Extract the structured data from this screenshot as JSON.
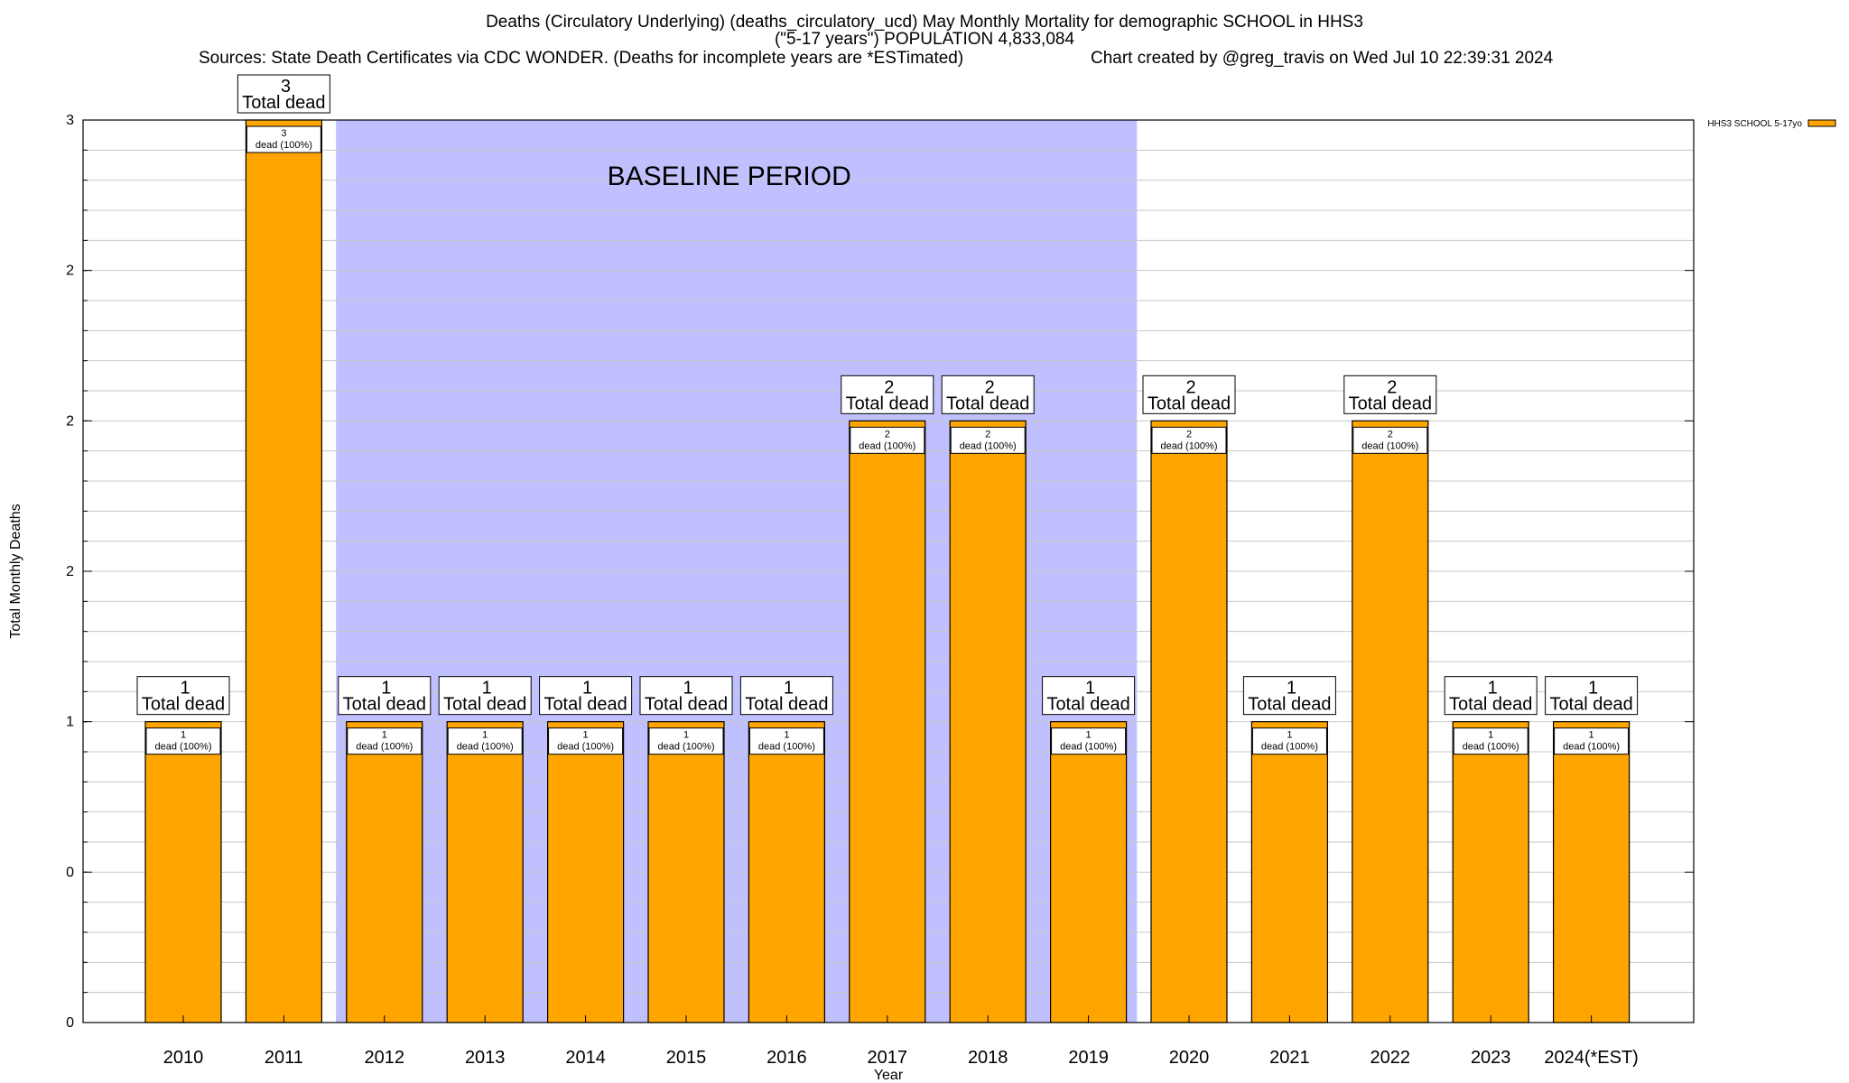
{
  "header": {
    "title_line1": "Deaths (Circulatory Underlying) (deaths_circulatory_ucd) May Monthly Mortality for demographic SCHOOL in HHS3",
    "title_line2": "(\"5-17 years\") POPULATION 4,833,084",
    "sources": "Sources: State Death Certificates via CDC WONDER. (Deaths for incomplete years are *ESTimated)",
    "credit": "Chart created by @greg_travis on Wed Jul 10 22:39:31 2024"
  },
  "chart_data": {
    "type": "bar",
    "xlabel": "Year",
    "ylabel": "Total Monthly Deaths",
    "ylim": [
      0,
      3
    ],
    "y_tick_labels": [
      "0",
      "0",
      "1",
      "2",
      "2",
      "2",
      "3"
    ],
    "y_tick_values": [
      0,
      0.5,
      1,
      1.5,
      2,
      2.5,
      3
    ],
    "grid": true,
    "legend_position": "top-right",
    "categories": [
      "2010",
      "2011",
      "2012",
      "2013",
      "2014",
      "2015",
      "2016",
      "2017",
      "2018",
      "2019",
      "2020",
      "2021",
      "2022",
      "2023",
      "2024(*EST)"
    ],
    "series": [
      {
        "name": "HHS3 SCHOOL 5-17yo",
        "color": "#ffa500",
        "values": [
          1,
          3,
          1,
          1,
          1,
          1,
          1,
          2,
          2,
          1,
          2,
          1,
          2,
          1,
          1
        ]
      }
    ],
    "total_labels": [
      "1",
      "3",
      "1",
      "1",
      "1",
      "1",
      "1",
      "2",
      "2",
      "1",
      "2",
      "1",
      "2",
      "1",
      "1"
    ],
    "total_suffix": "Total dead",
    "segment_labels": [
      "1",
      "3",
      "1",
      "1",
      "1",
      "1",
      "1",
      "2",
      "2",
      "1",
      "2",
      "1",
      "2",
      "1",
      "1"
    ],
    "segment_suffix": "dead (100%)",
    "baseline": {
      "label": "BASELINE PERIOD",
      "start": "2012",
      "end": "2019",
      "color": "#c0c0ff"
    }
  }
}
